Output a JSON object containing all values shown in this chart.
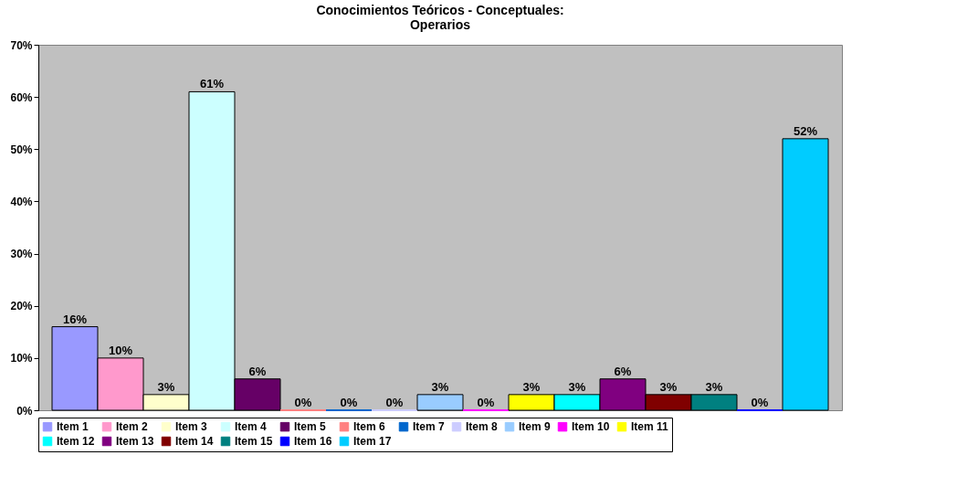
{
  "chart_data": {
    "type": "bar",
    "title": "Conocimientos Teóricos - Conceptuales:\nOperarios",
    "categories": [
      null
    ],
    "ylim": [
      0,
      70
    ],
    "yticks": [
      {
        "value": 0,
        "label": "0%"
      },
      {
        "value": 10,
        "label": "10%"
      },
      {
        "value": 20,
        "label": "20%"
      },
      {
        "value": 30,
        "label": "30%"
      },
      {
        "value": 40,
        "label": "40%"
      },
      {
        "value": 50,
        "label": "50%"
      },
      {
        "value": 60,
        "label": "60%"
      },
      {
        "value": 70,
        "label": "70%"
      }
    ],
    "grid": false,
    "legend": "bottom",
    "series": [
      {
        "name": "Item 1",
        "color": "#9999ff",
        "values": [
          16
        ],
        "value_labels": [
          "16%"
        ]
      },
      {
        "name": "Item 2",
        "color": "#ff99cc",
        "values": [
          10
        ],
        "value_labels": [
          "10%"
        ]
      },
      {
        "name": "Item 3",
        "color": "#ffffcc",
        "values": [
          3
        ],
        "value_labels": [
          "3%"
        ]
      },
      {
        "name": "Item 4",
        "color": "#ccffff",
        "values": [
          61
        ],
        "value_labels": [
          "61%"
        ]
      },
      {
        "name": "Item 5",
        "color": "#660066",
        "values": [
          6
        ],
        "value_labels": [
          "6%"
        ]
      },
      {
        "name": "Item 6",
        "color": "#ff8080",
        "values": [
          0
        ],
        "value_labels": [
          "0%"
        ]
      },
      {
        "name": "Item 7",
        "color": "#0066cc",
        "values": [
          0
        ],
        "value_labels": [
          "0%"
        ]
      },
      {
        "name": "Item 8",
        "color": "#ccccff",
        "values": [
          0
        ],
        "value_labels": [
          "0%"
        ]
      },
      {
        "name": "Item 9",
        "color": "#99ccff",
        "values": [
          3
        ],
        "value_labels": [
          "3%"
        ]
      },
      {
        "name": "Item 10",
        "color": "#ff00ff",
        "values": [
          0
        ],
        "value_labels": [
          "0%"
        ]
      },
      {
        "name": "Item 11",
        "color": "#ffff00",
        "values": [
          3
        ],
        "value_labels": [
          "3%"
        ]
      },
      {
        "name": "Item 12",
        "color": "#00ffff",
        "values": [
          3
        ],
        "value_labels": [
          "3%"
        ]
      },
      {
        "name": "Item 13",
        "color": "#800080",
        "values": [
          6
        ],
        "value_labels": [
          "6%"
        ]
      },
      {
        "name": "Item 14",
        "color": "#800000",
        "values": [
          3
        ],
        "value_labels": [
          "3%"
        ]
      },
      {
        "name": "Item 15",
        "color": "#008080",
        "values": [
          3
        ],
        "value_labels": [
          "3%"
        ]
      },
      {
        "name": "Item 16",
        "color": "#0000ff",
        "values": [
          0
        ],
        "value_labels": [
          "0%"
        ]
      },
      {
        "name": "Item 17",
        "color": "#00ccff",
        "values": [
          52
        ],
        "value_labels": [
          "52%"
        ]
      }
    ]
  }
}
